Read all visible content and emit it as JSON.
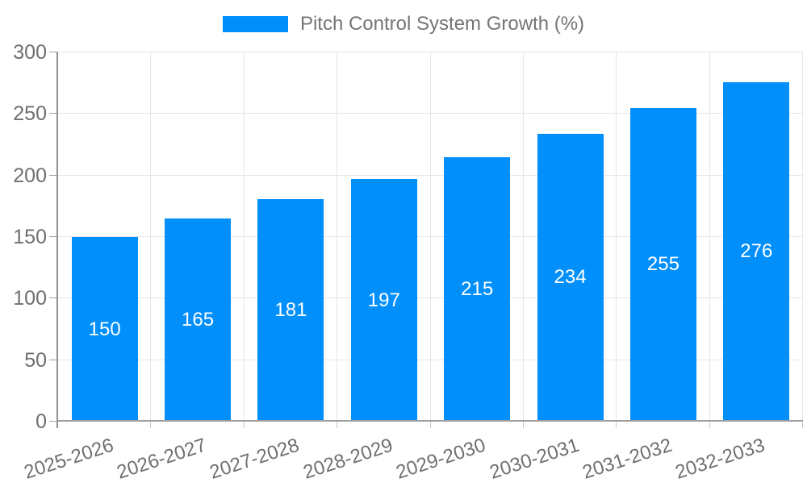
{
  "chart_data": {
    "type": "bar",
    "title": "Pitch Control System Growth (%)",
    "categories": [
      "2025-2026",
      "2026-2027",
      "2027-2028",
      "2028-2029",
      "2029-2030",
      "2030-2031",
      "2031-2032",
      "2032-2033"
    ],
    "values": [
      150,
      165,
      181,
      197,
      215,
      234,
      255,
      276
    ],
    "xlabel": "",
    "ylabel": "",
    "ylim": [
      0,
      300
    ],
    "yticks": [
      0,
      50,
      100,
      150,
      200,
      250,
      300
    ],
    "grid": true,
    "legend_position": "top",
    "value_label_position": "inside-center",
    "colors": {
      "bar": "#008ffb",
      "grid": "#e6e6e6",
      "axis": "#9e9e9e",
      "tick": "#c9c9c9",
      "axis_label": "#6f6f6f",
      "legend_label": "#757575",
      "value_label": "#ffffff",
      "background": "#ffffff"
    }
  }
}
